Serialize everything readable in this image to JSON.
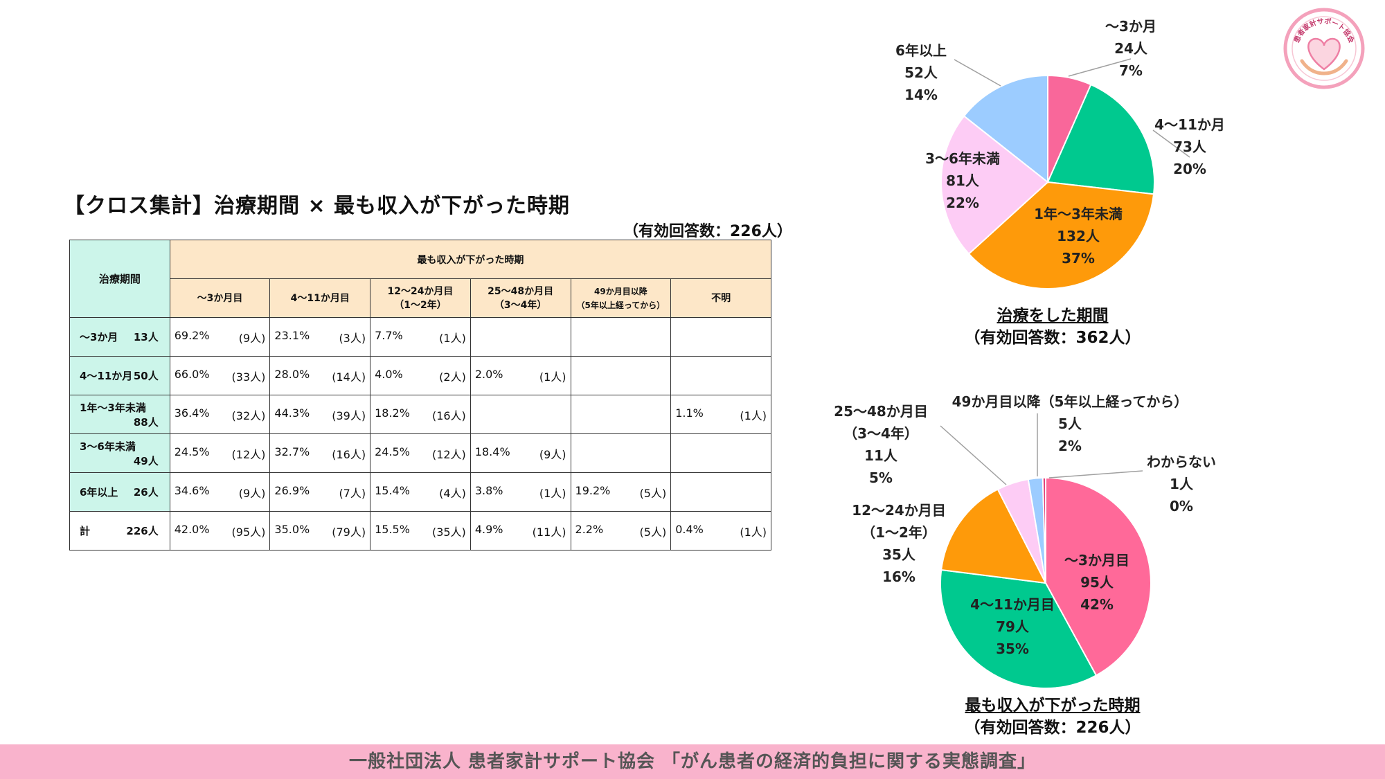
{
  "title": "【クロス集計】治療期間 × 最も収入が下がった時期",
  "note": "（有効回答数：226人）",
  "table": {
    "corner": "治療期間",
    "group_header": "最も収入が下がった時期",
    "columns": [
      {
        "line1": "～3か月目",
        "line2": ""
      },
      {
        "line1": "4～11か月目",
        "line2": ""
      },
      {
        "line1": "12～24か月目",
        "line2": "（1～2年）"
      },
      {
        "line1": "25～48か月目",
        "line2": "（3～4年）"
      },
      {
        "line1": "49か月目以降",
        "line2": "（5年以上経ってから）"
      },
      {
        "line1": "不明",
        "line2": ""
      }
    ],
    "rows": [
      {
        "label": "～3か月",
        "count": "13人",
        "cells": [
          [
            "69.2%",
            "(9人)"
          ],
          [
            "23.1%",
            "(3人)"
          ],
          [
            "7.7%",
            "(1人)"
          ],
          [
            "",
            ""
          ],
          [
            "",
            ""
          ],
          [
            "",
            ""
          ]
        ]
      },
      {
        "label": "4～11か月",
        "count": "50人",
        "cells": [
          [
            "66.0%",
            "(33人)"
          ],
          [
            "28.0%",
            "(14人)"
          ],
          [
            "4.0%",
            "(2人)"
          ],
          [
            "2.0%",
            "(1人)"
          ],
          [
            "",
            ""
          ],
          [
            "",
            ""
          ]
        ]
      },
      {
        "label": "1年～3年未満",
        "count": "88人",
        "cells": [
          [
            "36.4%",
            "(32人)"
          ],
          [
            "44.3%",
            "(39人)"
          ],
          [
            "18.2%",
            "(16人)"
          ],
          [
            "",
            ""
          ],
          [
            "",
            ""
          ],
          [
            "1.1%",
            "(1人)"
          ]
        ]
      },
      {
        "label": "3～6年未満",
        "count": "49人",
        "cells": [
          [
            "24.5%",
            "(12人)"
          ],
          [
            "32.7%",
            "(16人)"
          ],
          [
            "24.5%",
            "(12人)"
          ],
          [
            "18.4%",
            "(9人)"
          ],
          [
            "",
            ""
          ],
          [
            "",
            ""
          ]
        ]
      },
      {
        "label": "6年以上",
        "count": "26人",
        "cells": [
          [
            "34.6%",
            "(9人)"
          ],
          [
            "26.9%",
            "(7人)"
          ],
          [
            "15.4%",
            "(4人)"
          ],
          [
            "3.8%",
            "(1人)"
          ],
          [
            "19.2%",
            "(5人)"
          ],
          [
            "",
            ""
          ]
        ]
      }
    ],
    "total": {
      "label": "計",
      "count": "226人",
      "cells": [
        [
          "42.0%",
          "(95人)"
        ],
        [
          "35.0%",
          "(79人)"
        ],
        [
          "15.5%",
          "(35人)"
        ],
        [
          "4.9%",
          "(11人)"
        ],
        [
          "2.2%",
          "(5人)"
        ],
        [
          "0.4%",
          "(1人)"
        ]
      ]
    }
  },
  "chart_data": [
    {
      "type": "pie",
      "title": "治療をした期間",
      "subtitle": "（有効回答数：362人）",
      "slices": [
        {
          "label": "～3か月",
          "count": "24人",
          "percent_label": "7%",
          "value": 24,
          "color": "#f9679a"
        },
        {
          "label": "4～11か月",
          "count": "73人",
          "percent_label": "20%",
          "value": 73,
          "color": "#00c98f"
        },
        {
          "label": "1年～3年未満",
          "count": "132人",
          "percent_label": "37%",
          "value": 132,
          "color": "#fe9a0a"
        },
        {
          "label": "3～6年未満",
          "count": "81人",
          "percent_label": "22%",
          "value": 81,
          "color": "#fdccf5"
        },
        {
          "label": "6年以上",
          "count": "52人",
          "percent_label": "14%",
          "value": 52,
          "color": "#9cccff"
        }
      ]
    },
    {
      "type": "pie",
      "title": "最も収入が下がった時期",
      "subtitle": "（有効回答数：226人）",
      "slices": [
        {
          "label": "～3か月目",
          "count": "95人",
          "percent_label": "42%",
          "value": 95,
          "color": "#ff6999"
        },
        {
          "label": "4～11か月目",
          "count": "79人",
          "percent_label": "35%",
          "value": 79,
          "color": "#00c98f"
        },
        {
          "label": "12～24か月目（1～2年）",
          "count": "35人",
          "percent_label": "16%",
          "value": 35,
          "color": "#fe9a0a"
        },
        {
          "label": "25～48か月目（3～4年）",
          "count": "11人",
          "percent_label": "5%",
          "value": 11,
          "color": "#fdccf5"
        },
        {
          "label": "49か月目以降（5年以上経ってから）",
          "count": "5人",
          "percent_label": "2%",
          "value": 5,
          "color": "#9cccff"
        },
        {
          "label": "わからない",
          "count": "1人",
          "percent_label": "0%",
          "value": 1,
          "color": "#e4427b"
        }
      ]
    }
  ],
  "footer": "一般社団法人 患者家計サポート協会 「がん患者の経済的負担に関する実態調査」",
  "logo": {
    "text": "患者家計サポート協会",
    "icon": "heart-hands-icon",
    "color": "#f4a1bb"
  }
}
